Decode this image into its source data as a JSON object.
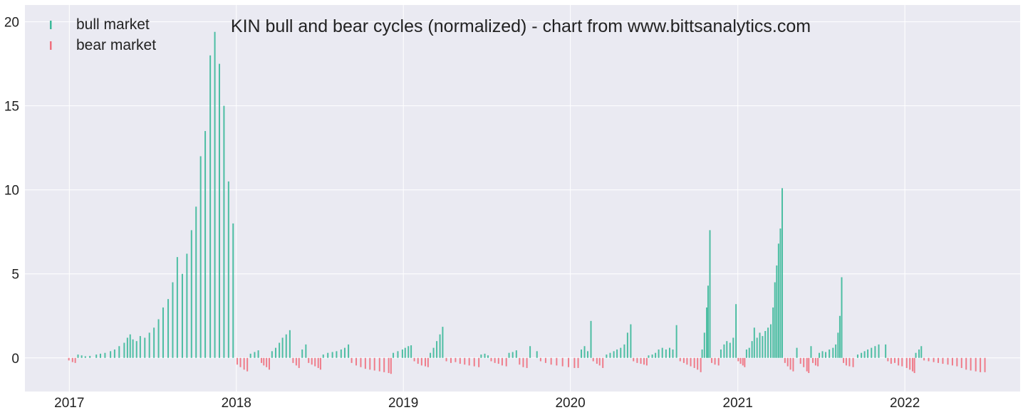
{
  "chart_data": {
    "type": "bar",
    "title": "KIN bull and bear cycles (normalized)  - chart from www.bittsanalytics.com",
    "xlabel": "",
    "ylabel": "",
    "x_range": [
      "2016-09-26",
      "2022-09-10"
    ],
    "ylim": [
      -2,
      21
    ],
    "yticks": [
      0,
      5,
      10,
      15,
      20
    ],
    "xticks": [
      "2017-01-01",
      "2018-01-01",
      "2019-01-01",
      "2020-01-01",
      "2021-01-01",
      "2022-01-01"
    ],
    "xtick_labels": [
      "2017",
      "2018",
      "2019",
      "2020",
      "2021",
      "2022"
    ],
    "grid": true,
    "legend": {
      "position": "top-left",
      "entries": [
        "bull market",
        "bear market"
      ]
    },
    "colors": {
      "bull market": "#3cb99a",
      "bear market": "#f0707e",
      "background": "#eaeaf2",
      "grid": "#ffffff"
    },
    "series": [
      {
        "name": "bull market",
        "points": [
          [
            "2017-01-20",
            0.2
          ],
          [
            "2017-01-28",
            0.15
          ],
          [
            "2017-02-05",
            0.1
          ],
          [
            "2017-02-15",
            0.12
          ],
          [
            "2017-03-01",
            0.2
          ],
          [
            "2017-03-10",
            0.25
          ],
          [
            "2017-03-20",
            0.3
          ],
          [
            "2017-04-01",
            0.4
          ],
          [
            "2017-04-10",
            0.5
          ],
          [
            "2017-04-20",
            0.7
          ],
          [
            "2017-05-01",
            0.9
          ],
          [
            "2017-05-08",
            1.2
          ],
          [
            "2017-05-14",
            1.4
          ],
          [
            "2017-05-20",
            1.1
          ],
          [
            "2017-05-28",
            1.0
          ],
          [
            "2017-06-05",
            1.3
          ],
          [
            "2017-06-15",
            1.2
          ],
          [
            "2017-06-25",
            1.5
          ],
          [
            "2017-07-05",
            1.8
          ],
          [
            "2017-07-15",
            2.3
          ],
          [
            "2017-07-25",
            3.0
          ],
          [
            "2017-08-05",
            3.5
          ],
          [
            "2017-08-15",
            4.5
          ],
          [
            "2017-08-25",
            6.0
          ],
          [
            "2017-09-05",
            5.0
          ],
          [
            "2017-09-15",
            6.2
          ],
          [
            "2017-09-25",
            7.6
          ],
          [
            "2017-10-05",
            9.0
          ],
          [
            "2017-10-15",
            12.0
          ],
          [
            "2017-10-25",
            13.5
          ],
          [
            "2017-11-05",
            18.0
          ],
          [
            "2017-11-15",
            19.4
          ],
          [
            "2017-11-25",
            17.5
          ],
          [
            "2017-12-05",
            15.0
          ],
          [
            "2017-12-15",
            10.5
          ],
          [
            "2017-12-25",
            8.0
          ],
          [
            "2018-02-01",
            0.25
          ],
          [
            "2018-02-10",
            0.35
          ],
          [
            "2018-02-18",
            0.45
          ],
          [
            "2018-03-20",
            0.4
          ],
          [
            "2018-03-28",
            0.6
          ],
          [
            "2018-04-05",
            0.9
          ],
          [
            "2018-04-12",
            1.2
          ],
          [
            "2018-04-20",
            1.4
          ],
          [
            "2018-04-28",
            1.65
          ],
          [
            "2018-05-25",
            0.5
          ],
          [
            "2018-06-02",
            0.8
          ],
          [
            "2018-07-10",
            0.2
          ],
          [
            "2018-07-20",
            0.3
          ],
          [
            "2018-07-30",
            0.35
          ],
          [
            "2018-08-08",
            0.4
          ],
          [
            "2018-08-18",
            0.5
          ],
          [
            "2018-08-26",
            0.6
          ],
          [
            "2018-09-03",
            0.8
          ],
          [
            "2018-12-10",
            0.3
          ],
          [
            "2018-12-20",
            0.4
          ],
          [
            "2018-12-30",
            0.5
          ],
          [
            "2019-01-05",
            0.6
          ],
          [
            "2019-01-12",
            0.7
          ],
          [
            "2019-01-18",
            0.75
          ],
          [
            "2019-03-01",
            0.3
          ],
          [
            "2019-03-08",
            0.6
          ],
          [
            "2019-03-15",
            1.0
          ],
          [
            "2019-03-22",
            1.4
          ],
          [
            "2019-03-28",
            1.85
          ],
          [
            "2019-06-20",
            0.2
          ],
          [
            "2019-06-28",
            0.25
          ],
          [
            "2019-07-05",
            0.15
          ],
          [
            "2019-08-20",
            0.3
          ],
          [
            "2019-08-28",
            0.35
          ],
          [
            "2019-09-05",
            0.45
          ],
          [
            "2019-10-05",
            0.7
          ],
          [
            "2019-10-20",
            0.4
          ],
          [
            "2020-01-25",
            0.5
          ],
          [
            "2020-02-01",
            0.7
          ],
          [
            "2020-02-08",
            0.4
          ],
          [
            "2020-02-15",
            2.2
          ],
          [
            "2020-03-20",
            0.2
          ],
          [
            "2020-03-28",
            0.3
          ],
          [
            "2020-04-05",
            0.4
          ],
          [
            "2020-04-12",
            0.5
          ],
          [
            "2020-04-20",
            0.6
          ],
          [
            "2020-04-28",
            0.8
          ],
          [
            "2020-05-05",
            1.5
          ],
          [
            "2020-05-12",
            2.0
          ],
          [
            "2020-06-20",
            0.15
          ],
          [
            "2020-06-28",
            0.2
          ],
          [
            "2020-07-05",
            0.3
          ],
          [
            "2020-07-12",
            0.5
          ],
          [
            "2020-07-20",
            0.6
          ],
          [
            "2020-07-28",
            0.5
          ],
          [
            "2020-08-05",
            0.6
          ],
          [
            "2020-08-12",
            0.5
          ],
          [
            "2020-08-20",
            1.95
          ],
          [
            "2020-10-15",
            0.5
          ],
          [
            "2020-10-20",
            1.5
          ],
          [
            "2020-10-25",
            3.0
          ],
          [
            "2020-10-28",
            4.3
          ],
          [
            "2020-11-01",
            7.6
          ],
          [
            "2020-11-25",
            0.5
          ],
          [
            "2020-12-02",
            0.8
          ],
          [
            "2020-12-08",
            1.0
          ],
          [
            "2020-12-15",
            0.9
          ],
          [
            "2020-12-22",
            1.2
          ],
          [
            "2020-12-28",
            3.2
          ],
          [
            "2021-01-20",
            0.5
          ],
          [
            "2021-01-26",
            0.6
          ],
          [
            "2021-02-01",
            1.0
          ],
          [
            "2021-02-06",
            1.8
          ],
          [
            "2021-02-12",
            1.2
          ],
          [
            "2021-02-18",
            1.5
          ],
          [
            "2021-02-24",
            1.3
          ],
          [
            "2021-03-02",
            1.6
          ],
          [
            "2021-03-08",
            1.8
          ],
          [
            "2021-03-14",
            2.0
          ],
          [
            "2021-03-19",
            3.0
          ],
          [
            "2021-03-23",
            4.5
          ],
          [
            "2021-03-27",
            5.5
          ],
          [
            "2021-03-31",
            6.8
          ],
          [
            "2021-04-04",
            7.7
          ],
          [
            "2021-04-08",
            10.1
          ],
          [
            "2021-05-10",
            0.6
          ],
          [
            "2021-06-10",
            0.7
          ],
          [
            "2021-06-28",
            0.3
          ],
          [
            "2021-07-05",
            0.4
          ],
          [
            "2021-07-12",
            0.35
          ],
          [
            "2021-07-20",
            0.5
          ],
          [
            "2021-07-28",
            0.6
          ],
          [
            "2021-08-03",
            0.8
          ],
          [
            "2021-08-08",
            1.5
          ],
          [
            "2021-08-12",
            2.5
          ],
          [
            "2021-08-16",
            4.8
          ],
          [
            "2021-09-20",
            0.2
          ],
          [
            "2021-09-28",
            0.3
          ],
          [
            "2021-10-05",
            0.4
          ],
          [
            "2021-10-12",
            0.5
          ],
          [
            "2021-10-20",
            0.6
          ],
          [
            "2021-10-28",
            0.7
          ],
          [
            "2021-11-05",
            0.8
          ],
          [
            "2021-11-20",
            0.8
          ],
          [
            "2022-01-25",
            0.3
          ],
          [
            "2022-02-01",
            0.5
          ],
          [
            "2022-02-06",
            0.7
          ]
        ]
      },
      {
        "name": "bear market",
        "points": [
          [
            "2016-12-31",
            -0.15
          ],
          [
            "2017-01-08",
            -0.25
          ],
          [
            "2017-01-14",
            -0.3
          ],
          [
            "2018-01-03",
            -0.4
          ],
          [
            "2018-01-10",
            -0.55
          ],
          [
            "2018-01-18",
            -0.7
          ],
          [
            "2018-01-25",
            -0.8
          ],
          [
            "2018-02-25",
            -0.3
          ],
          [
            "2018-03-02",
            -0.45
          ],
          [
            "2018-03-08",
            -0.55
          ],
          [
            "2018-03-14",
            -0.7
          ],
          [
            "2018-05-05",
            -0.3
          ],
          [
            "2018-05-12",
            -0.45
          ],
          [
            "2018-05-18",
            -0.6
          ],
          [
            "2018-06-08",
            -0.3
          ],
          [
            "2018-06-15",
            -0.4
          ],
          [
            "2018-06-22",
            -0.5
          ],
          [
            "2018-06-29",
            -0.6
          ],
          [
            "2018-07-04",
            -0.7
          ],
          [
            "2018-09-10",
            -0.3
          ],
          [
            "2018-09-20",
            -0.45
          ],
          [
            "2018-09-30",
            -0.55
          ],
          [
            "2018-10-10",
            -0.65
          ],
          [
            "2018-10-20",
            -0.7
          ],
          [
            "2018-10-30",
            -0.75
          ],
          [
            "2018-11-10",
            -0.8
          ],
          [
            "2018-11-20",
            -0.85
          ],
          [
            "2018-11-30",
            -0.9
          ],
          [
            "2018-12-05",
            -0.95
          ],
          [
            "2019-01-25",
            -0.2
          ],
          [
            "2019-02-02",
            -0.35
          ],
          [
            "2019-02-10",
            -0.45
          ],
          [
            "2019-02-18",
            -0.5
          ],
          [
            "2019-02-24",
            -0.55
          ],
          [
            "2019-04-05",
            -0.2
          ],
          [
            "2019-04-15",
            -0.3
          ],
          [
            "2019-04-25",
            -0.25
          ],
          [
            "2019-05-05",
            -0.35
          ],
          [
            "2019-05-15",
            -0.4
          ],
          [
            "2019-05-25",
            -0.45
          ],
          [
            "2019-06-05",
            -0.5
          ],
          [
            "2019-06-15",
            -0.55
          ],
          [
            "2019-07-12",
            -0.2
          ],
          [
            "2019-07-20",
            -0.3
          ],
          [
            "2019-07-28",
            -0.35
          ],
          [
            "2019-08-05",
            -0.45
          ],
          [
            "2019-08-14",
            -0.5
          ],
          [
            "2019-09-12",
            -0.4
          ],
          [
            "2019-09-20",
            -0.55
          ],
          [
            "2019-09-28",
            -0.6
          ],
          [
            "2019-10-28",
            -0.2
          ],
          [
            "2019-11-08",
            -0.3
          ],
          [
            "2019-11-20",
            -0.4
          ],
          [
            "2019-12-02",
            -0.45
          ],
          [
            "2019-12-15",
            -0.5
          ],
          [
            "2019-12-28",
            -0.55
          ],
          [
            "2020-01-10",
            -0.6
          ],
          [
            "2020-01-18",
            -0.6
          ],
          [
            "2020-02-20",
            -0.2
          ],
          [
            "2020-02-28",
            -0.35
          ],
          [
            "2020-03-05",
            -0.45
          ],
          [
            "2020-03-12",
            -0.6
          ],
          [
            "2020-05-18",
            -0.2
          ],
          [
            "2020-05-26",
            -0.3
          ],
          [
            "2020-06-03",
            -0.35
          ],
          [
            "2020-06-10",
            -0.4
          ],
          [
            "2020-06-16",
            -0.45
          ],
          [
            "2020-08-28",
            -0.2
          ],
          [
            "2020-09-05",
            -0.3
          ],
          [
            "2020-09-12",
            -0.4
          ],
          [
            "2020-09-20",
            -0.5
          ],
          [
            "2020-09-28",
            -0.6
          ],
          [
            "2020-10-05",
            -0.7
          ],
          [
            "2020-10-12",
            -0.85
          ],
          [
            "2020-11-05",
            -0.3
          ],
          [
            "2020-11-12",
            -0.4
          ],
          [
            "2020-11-20",
            -0.45
          ],
          [
            "2021-01-02",
            -0.2
          ],
          [
            "2021-01-07",
            -0.35
          ],
          [
            "2021-01-12",
            -0.45
          ],
          [
            "2021-01-16",
            -0.55
          ],
          [
            "2021-04-14",
            -0.3
          ],
          [
            "2021-04-20",
            -0.5
          ],
          [
            "2021-04-26",
            -0.7
          ],
          [
            "2021-05-02",
            -0.8
          ],
          [
            "2021-05-18",
            -0.35
          ],
          [
            "2021-05-25",
            -0.55
          ],
          [
            "2021-06-01",
            -0.8
          ],
          [
            "2021-06-05",
            -0.9
          ],
          [
            "2021-06-14",
            -0.3
          ],
          [
            "2021-06-20",
            -0.45
          ],
          [
            "2021-06-25",
            -0.5
          ],
          [
            "2021-08-20",
            -0.3
          ],
          [
            "2021-08-26",
            -0.45
          ],
          [
            "2021-09-02",
            -0.5
          ],
          [
            "2021-09-10",
            -0.55
          ],
          [
            "2021-11-25",
            -0.2
          ],
          [
            "2021-12-02",
            -0.35
          ],
          [
            "2021-12-10",
            -0.3
          ],
          [
            "2021-12-18",
            -0.45
          ],
          [
            "2021-12-26",
            -0.5
          ],
          [
            "2022-01-05",
            -0.6
          ],
          [
            "2022-01-12",
            -0.7
          ],
          [
            "2022-01-18",
            -0.8
          ],
          [
            "2022-01-22",
            -0.9
          ],
          [
            "2022-02-12",
            -0.15
          ],
          [
            "2022-02-22",
            -0.2
          ],
          [
            "2022-03-05",
            -0.25
          ],
          [
            "2022-03-15",
            -0.3
          ],
          [
            "2022-03-25",
            -0.35
          ],
          [
            "2022-04-05",
            -0.4
          ],
          [
            "2022-04-15",
            -0.45
          ],
          [
            "2022-04-25",
            -0.5
          ],
          [
            "2022-05-05",
            -0.6
          ],
          [
            "2022-05-15",
            -0.7
          ],
          [
            "2022-05-25",
            -0.75
          ],
          [
            "2022-06-05",
            -0.8
          ],
          [
            "2022-06-15",
            -0.85
          ],
          [
            "2022-06-25",
            -0.85
          ]
        ]
      }
    ]
  }
}
